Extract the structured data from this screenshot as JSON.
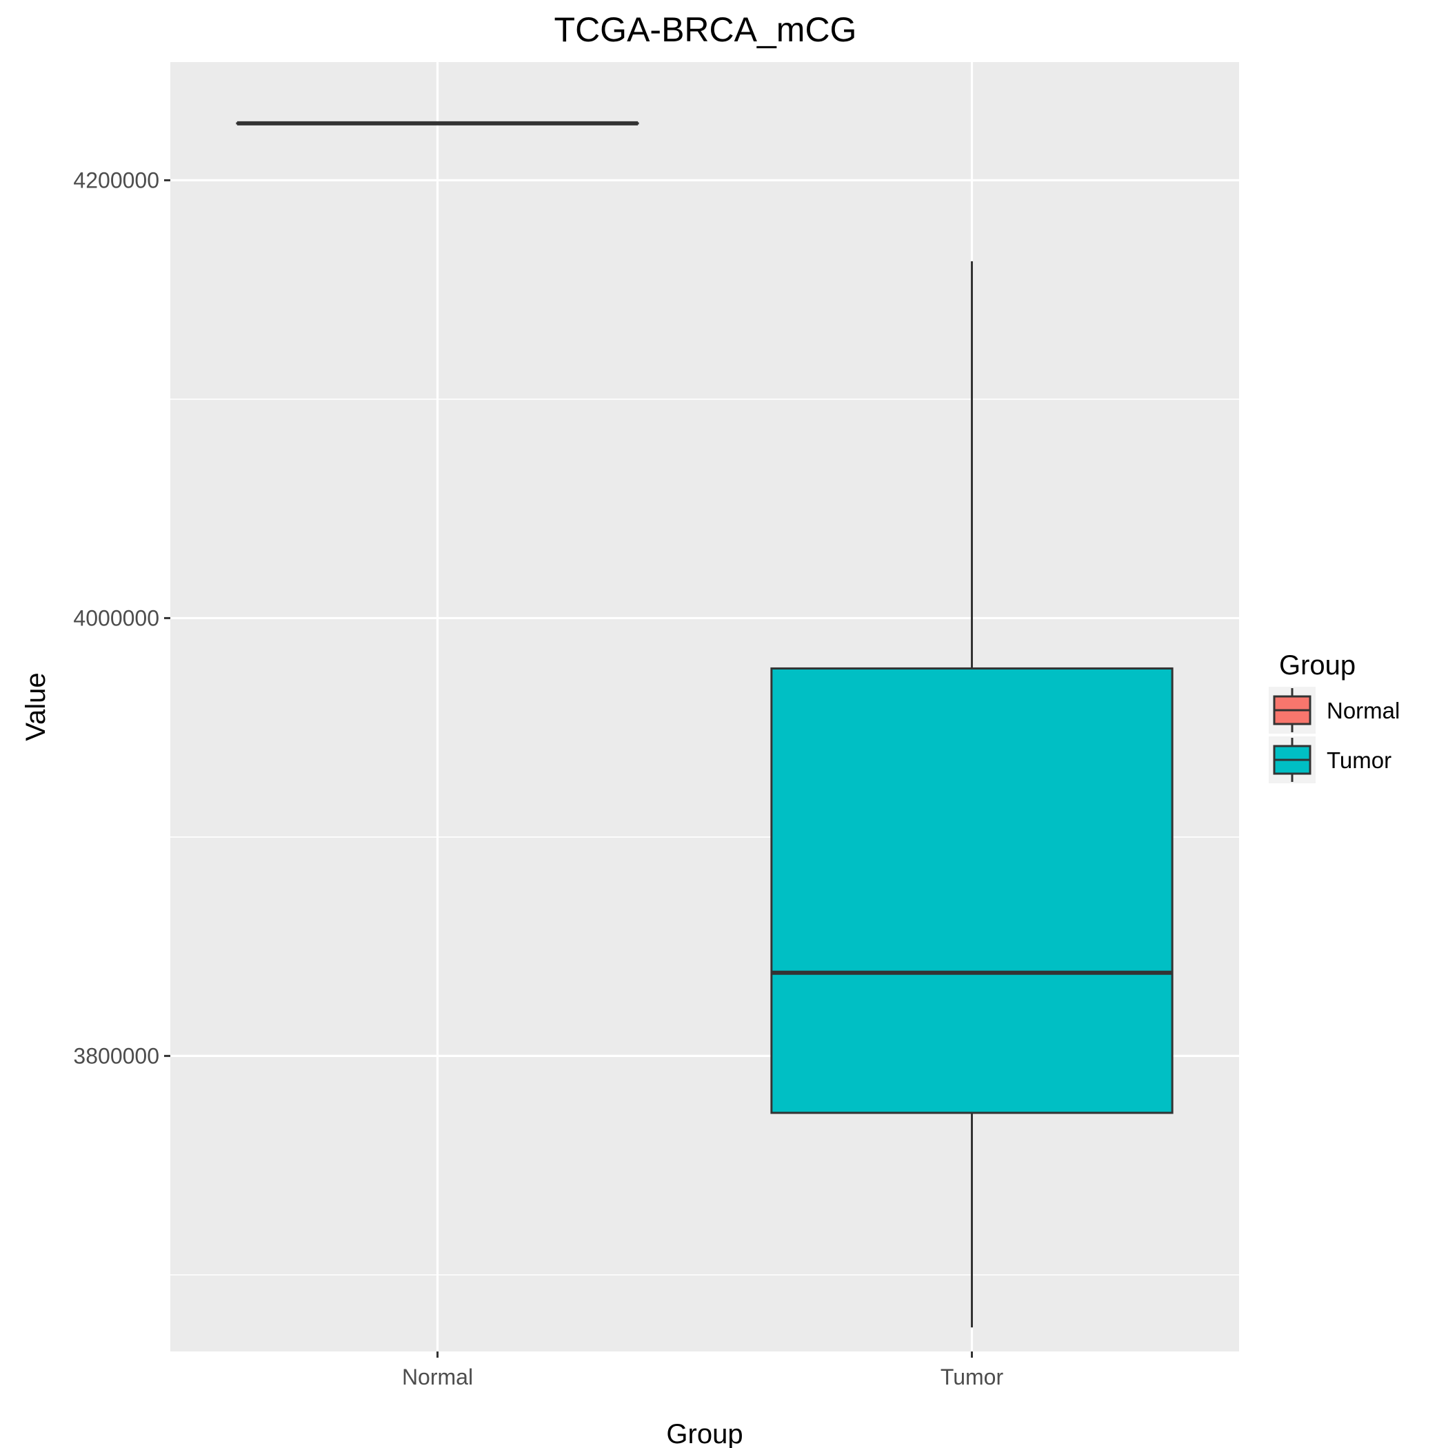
{
  "chart_data": {
    "type": "boxplot",
    "title": "TCGA-BRCA_mCG",
    "xlabel": "Group",
    "ylabel": "Value",
    "categories": [
      "Normal",
      "Tumor"
    ],
    "ylim": [
      3665000,
      4254000
    ],
    "yticks": [
      3800000,
      4000000,
      4200000
    ],
    "grid": true,
    "legend": {
      "title": "Group",
      "placement": "right",
      "entries": [
        {
          "name": "Normal",
          "color": "#f8766d"
        },
        {
          "name": "Tumor",
          "color": "#00bfc4"
        }
      ]
    },
    "series": [
      {
        "name": "Normal",
        "color": "#f8766d",
        "min": 4226000,
        "q1": 4226000,
        "median": 4226000,
        "q3": 4226000,
        "max": 4226000
      },
      {
        "name": "Tumor",
        "color": "#00bfc4",
        "min": 3676000,
        "q1": 3774000,
        "median": 3838000,
        "q3": 3977000,
        "max": 4163000
      }
    ],
    "colors": {
      "panel": "#ebebeb",
      "grid": "#ffffff",
      "box_outline": "#333333",
      "tick": "#333333"
    }
  }
}
